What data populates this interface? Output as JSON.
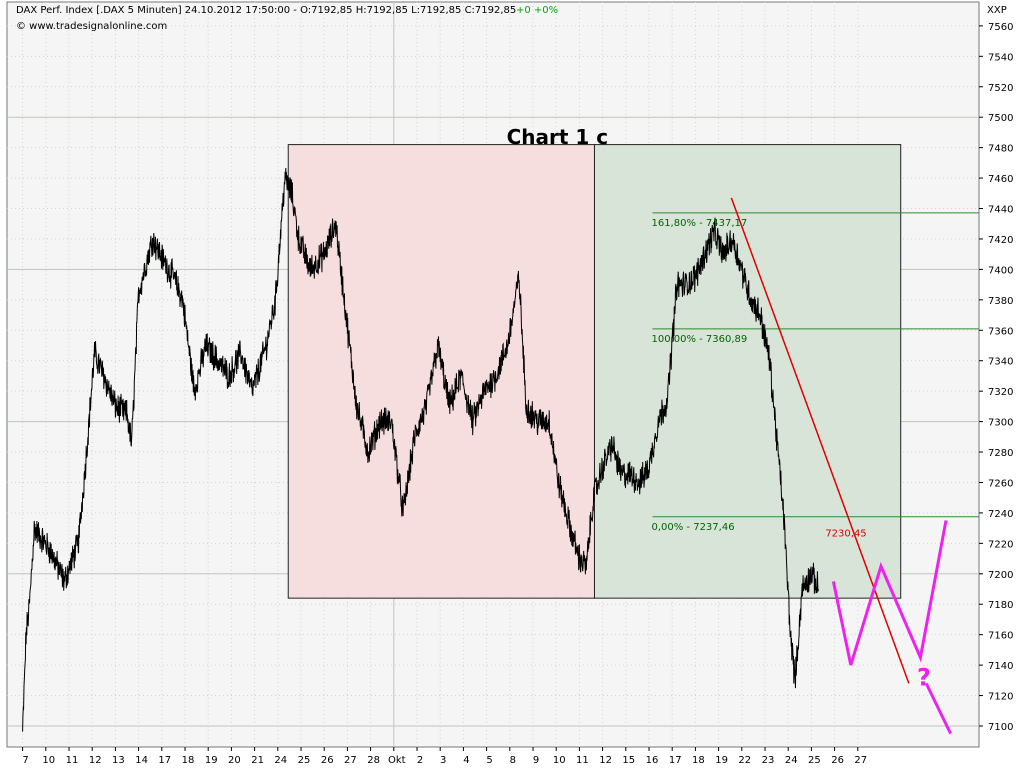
{
  "header": {
    "instrument": "DAX Perf. Index [.DAX  5 Minuten] 24.10.2012 17:50:00 - O:7192,85 H:7192,85 L:7192,85 C:7192,85",
    "change": "+0 +0%",
    "source": "© www.tradesignalonline.com",
    "axis_corner": "XXP"
  },
  "colors": {
    "background": "#f5f5f5",
    "grid": "#cfd8cf",
    "price": "#000000",
    "red_zone": "#f6dede",
    "green_zone": "#d9e4d9",
    "fib_line": "#2e8b2e",
    "fib_text": "#006400",
    "trendline": "#e00000",
    "projection": "#ee22ee",
    "change_text": "#00aa00"
  },
  "chart_data": {
    "type": "line",
    "title": "Chart 1 c",
    "y_ticks": [
      7100,
      7120,
      7140,
      7160,
      7180,
      7200,
      7220,
      7240,
      7260,
      7280,
      7300,
      7320,
      7340,
      7360,
      7380,
      7400,
      7420,
      7440,
      7460,
      7480,
      7500,
      7520,
      7540,
      7560
    ],
    "ylim": [
      7086,
      7575
    ],
    "x_ticks": [
      "7",
      "10",
      "11",
      "12",
      "13",
      "14",
      "17",
      "18",
      "19",
      "20",
      "21",
      "24",
      "25",
      "26",
      "27",
      "28",
      "Okt",
      "2",
      "3",
      "4",
      "5",
      "8",
      "9",
      "10",
      "11",
      "12",
      "15",
      "16",
      "17",
      "18",
      "19",
      "22",
      "23",
      "24",
      "25",
      "26",
      "27"
    ],
    "xlim": [
      0,
      40
    ],
    "anchors": [
      [
        0,
        7095
      ],
      [
        0.15,
        7160
      ],
      [
        0.3,
        7180
      ],
      [
        0.5,
        7230
      ],
      [
        1.2,
        7215
      ],
      [
        1.8,
        7195
      ],
      [
        2.4,
        7220
      ],
      [
        2.7,
        7270
      ],
      [
        3.1,
        7345
      ],
      [
        3.5,
        7330
      ],
      [
        4.0,
        7310
      ],
      [
        4.5,
        7305
      ],
      [
        4.7,
        7285
      ],
      [
        5.0,
        7385
      ],
      [
        5.6,
        7420
      ],
      [
        6.1,
        7405
      ],
      [
        6.5,
        7395
      ],
      [
        6.9,
        7380
      ],
      [
        7.4,
        7320
      ],
      [
        7.9,
        7350
      ],
      [
        8.4,
        7340
      ],
      [
        8.9,
        7330
      ],
      [
        9.4,
        7345
      ],
      [
        9.9,
        7320
      ],
      [
        10.5,
        7350
      ],
      [
        10.9,
        7380
      ],
      [
        11.3,
        7460
      ],
      [
        11.6,
        7450
      ],
      [
        11.9,
        7420
      ],
      [
        12.4,
        7400
      ],
      [
        13.0,
        7410
      ],
      [
        13.5,
        7430
      ],
      [
        13.9,
        7375
      ],
      [
        14.4,
        7310
      ],
      [
        14.9,
        7280
      ],
      [
        15.4,
        7300
      ],
      [
        15.9,
        7300
      ],
      [
        16.4,
        7240
      ],
      [
        16.9,
        7290
      ],
      [
        17.4,
        7310
      ],
      [
        17.9,
        7350
      ],
      [
        18.4,
        7310
      ],
      [
        18.9,
        7330
      ],
      [
        19.4,
        7300
      ],
      [
        19.9,
        7320
      ],
      [
        20.4,
        7330
      ],
      [
        20.9,
        7350
      ],
      [
        21.4,
        7395
      ],
      [
        21.7,
        7310
      ],
      [
        22.2,
        7300
      ],
      [
        22.7,
        7300
      ],
      [
        23.1,
        7260
      ],
      [
        23.6,
        7230
      ],
      [
        24.0,
        7210
      ],
      [
        24.3,
        7205
      ],
      [
        24.6,
        7250
      ],
      [
        25.0,
        7270
      ],
      [
        25.4,
        7285
      ],
      [
        25.8,
        7265
      ],
      [
        26.2,
        7265
      ],
      [
        26.6,
        7260
      ],
      [
        27.0,
        7270
      ],
      [
        27.4,
        7300
      ],
      [
        27.8,
        7315
      ],
      [
        28.2,
        7390
      ],
      [
        28.6,
        7390
      ],
      [
        29.0,
        7395
      ],
      [
        29.4,
        7410
      ],
      [
        29.8,
        7425
      ],
      [
        30.2,
        7410
      ],
      [
        30.6,
        7420
      ],
      [
        31.0,
        7400
      ],
      [
        31.4,
        7380
      ],
      [
        31.8,
        7370
      ],
      [
        32.2,
        7340
      ],
      [
        32.5,
        7290
      ],
      [
        32.8,
        7240
      ],
      [
        33.1,
        7160
      ],
      [
        33.3,
        7130
      ],
      [
        33.6,
        7190
      ],
      [
        34.0,
        7200
      ],
      [
        34.3,
        7190
      ]
    ],
    "fib_levels": [
      {
        "label": "161,80% - 7437,17",
        "value": 7437.17
      },
      {
        "label": "100,00% - 7360,89",
        "value": 7360.89
      },
      {
        "label": "0,00% - 7237,46",
        "value": 7237.46
      }
    ],
    "trendline_label": "7230,45",
    "projection_mark": "?",
    "zones": [
      {
        "name": "red",
        "x_from": 11.45,
        "x_to": 24.65,
        "y_from": 7482,
        "y_to": 7184
      },
      {
        "name": "green",
        "x_from": 24.65,
        "x_to": 37.85,
        "y_from": 7482,
        "y_to": 7184
      }
    ],
    "trendline": {
      "x_from": 30.55,
      "y_from": 7447,
      "x_to": 38.2,
      "y_to": 7128
    },
    "projection": [
      [
        34.95,
        7195
      ],
      [
        35.7,
        7140
      ],
      [
        37.0,
        7205
      ],
      [
        38.7,
        7145
      ],
      [
        39.8,
        7235
      ]
    ],
    "projection_tail": [
      [
        38.95,
        7128
      ],
      [
        40.0,
        7095
      ]
    ],
    "grid": true
  }
}
